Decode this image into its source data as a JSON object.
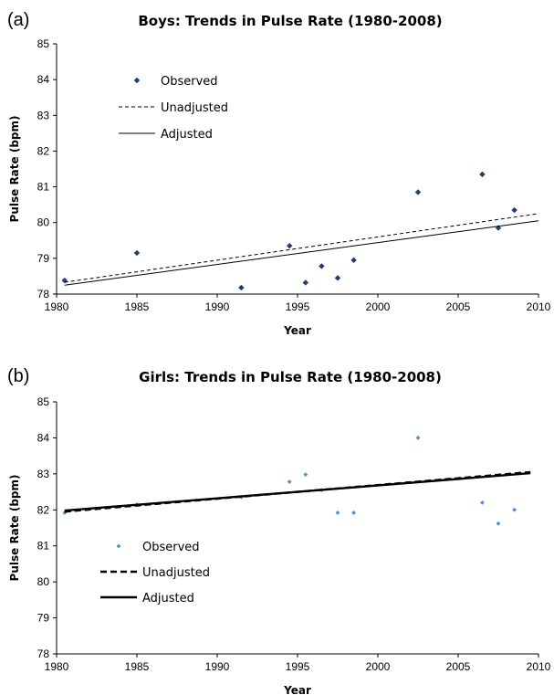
{
  "chart_data": [
    {
      "type": "scatter",
      "panel": "(a)",
      "title": "Boys: Trends in Pulse Rate (1980-2008)",
      "xlabel": "Year",
      "ylabel": "Pulse Rate (bpm)",
      "xlim": [
        1980,
        2010
      ],
      "ylim": [
        78,
        85
      ],
      "xticks": [
        1980,
        1985,
        1990,
        1995,
        2000,
        2005,
        2010
      ],
      "yticks": [
        78,
        79,
        80,
        81,
        82,
        83,
        84,
        85
      ],
      "grid": false,
      "legend_position": "top-left",
      "series": [
        {
          "name": "Observed",
          "kind": "points",
          "color": "#1f3f6e",
          "x": [
            1980.5,
            1985,
            1991.5,
            1994.5,
            1995.5,
            1996.5,
            1997.5,
            1998.5,
            2002.5,
            2006.5,
            2007.5,
            2008.5
          ],
          "y": [
            78.38,
            79.15,
            78.18,
            79.35,
            78.32,
            78.78,
            78.45,
            78.95,
            80.85,
            81.35,
            79.85,
            80.35
          ]
        },
        {
          "name": "Unadjusted",
          "kind": "dashed-line",
          "color": "#000000",
          "x": [
            1980.5,
            2010
          ],
          "y": [
            78.33,
            80.25
          ]
        },
        {
          "name": "Adjusted",
          "kind": "solid-line",
          "color": "#000000",
          "x": [
            1980.5,
            2010
          ],
          "y": [
            78.25,
            80.05
          ]
        }
      ]
    },
    {
      "type": "scatter",
      "panel": "(b)",
      "title": "Girls: Trends in Pulse Rate (1980-2008)",
      "xlabel": "Year",
      "ylabel": "Pulse Rate (bpm)",
      "xlim": [
        1980,
        2010
      ],
      "ylim": [
        78,
        85
      ],
      "xticks": [
        1980,
        1985,
        1990,
        1995,
        2000,
        2005,
        2010
      ],
      "yticks": [
        78,
        79,
        80,
        81,
        82,
        83,
        84,
        85
      ],
      "grid": false,
      "legend_position": "bottom-left",
      "series": [
        {
          "name": "Observed",
          "kind": "points",
          "color": "#4a90d9",
          "x": [
            1980.5,
            1985,
            1991.5,
            1994.5,
            1995.5,
            1996.5,
            1997.5,
            1998.5,
            2002.5,
            2006.5,
            2007.5,
            2008.5
          ],
          "y": [
            81.92,
            82.15,
            82.35,
            82.78,
            82.98,
            82.55,
            81.92,
            81.92,
            84.0,
            82.2,
            81.62,
            82.0
          ]
        },
        {
          "name": "Unadjusted",
          "kind": "dashed-line",
          "color": "#000000",
          "x": [
            1980.5,
            2009.5
          ],
          "y": [
            81.95,
            83.05
          ]
        },
        {
          "name": "Adjusted",
          "kind": "solid-line",
          "color": "#000000",
          "x": [
            1980.5,
            2009.5
          ],
          "y": [
            81.98,
            83.02
          ]
        }
      ]
    }
  ]
}
